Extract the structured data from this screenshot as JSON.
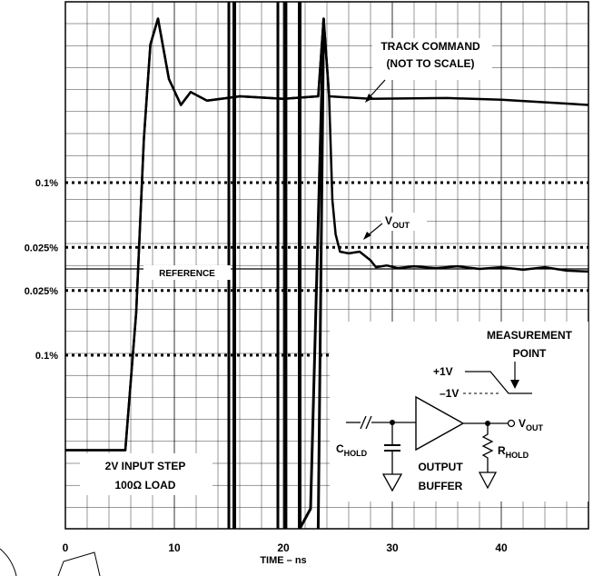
{
  "chart_data": {
    "type": "line",
    "title": "",
    "xlabel": "TIME – ns",
    "ylabel": "",
    "xlim": [
      0,
      48
    ],
    "x_ticks": [
      0,
      10,
      20,
      30,
      40
    ],
    "x_tick_labels": [
      "0",
      "10",
      "20",
      "30",
      "40"
    ],
    "grid": true,
    "levels": [
      {
        "label": "0.1%",
        "style": "dotted",
        "y_rel": 0.1
      },
      {
        "label": "0.025%",
        "style": "dotted",
        "y_rel": 0.025
      },
      {
        "label": "",
        "style": "solid",
        "y_rel": 0
      },
      {
        "label": "0.025%",
        "style": "dotted",
        "y_rel": -0.025
      },
      {
        "label": "0.1%",
        "style": "dotted",
        "y_rel": -0.1
      }
    ],
    "series": [
      {
        "name": "TRACK COMMAND",
        "points": [
          [
            0,
            -0.21
          ],
          [
            5.5,
            -0.21
          ],
          [
            6.5,
            -0.05
          ],
          [
            7.2,
            0.15
          ],
          [
            7.8,
            0.26
          ],
          [
            8.5,
            0.29
          ],
          [
            9.5,
            0.22
          ],
          [
            10.6,
            0.19
          ],
          [
            11.5,
            0.205
          ],
          [
            13,
            0.195
          ],
          [
            16,
            0.2
          ],
          [
            20,
            0.197
          ],
          [
            23.2,
            0.2
          ],
          [
            23.7,
            0.29
          ],
          [
            24.2,
            0.2
          ],
          [
            28,
            0.197
          ],
          [
            35,
            0.198
          ],
          [
            40,
            0.196
          ],
          [
            48,
            0.19
          ]
        ]
      },
      {
        "name": "VOUT",
        "points": [
          [
            0,
            -0.21
          ],
          [
            5.5,
            -0.21
          ],
          [
            6.5,
            -0.05
          ],
          [
            7.2,
            0.15
          ],
          [
            7.8,
            0.26
          ],
          [
            8.5,
            0.29
          ],
          [
            9.5,
            0.22
          ],
          [
            10.6,
            0.19
          ],
          [
            11.5,
            0.205
          ],
          [
            13,
            0.195
          ],
          [
            16,
            0.2
          ],
          [
            20,
            0.197
          ],
          [
            23.2,
            0.2
          ],
          [
            23.7,
            0.29
          ],
          [
            24.2,
            0.2
          ],
          [
            24.5,
            0.08
          ],
          [
            24.8,
            0.04
          ],
          [
            25.2,
            0.02
          ],
          [
            26,
            0.018
          ],
          [
            27,
            0.02
          ],
          [
            28,
            0.01
          ],
          [
            28.5,
            0.002
          ],
          [
            29.5,
            0.004
          ],
          [
            30.5,
            0.001
          ],
          [
            32,
            0.003
          ],
          [
            34,
            0.001
          ],
          [
            36,
            0.003
          ],
          [
            38,
            0.0
          ],
          [
            40,
            0.002
          ],
          [
            42,
            -0.001
          ],
          [
            44,
            0.002
          ],
          [
            46,
            -0.002
          ],
          [
            48,
            -0.003
          ]
        ]
      }
    ],
    "annotations": {
      "track_command_line1": "TRACK COMMAND",
      "track_command_line2": "(NOT TO SCALE)",
      "vout_label": "V",
      "vout_sub": "OUT",
      "reference": "REFERENCE",
      "input_step_line1": "2V INPUT STEP",
      "input_step_line2": "100Ω LOAD"
    },
    "inset": {
      "measurement_line1": "MEASUREMENT",
      "measurement_line2": "POINT",
      "plus": "+1V",
      "minus": "–1V",
      "vout": "V",
      "vout_sub": "OUT",
      "chold": "C",
      "chold_sub": "HOLD",
      "rhold": "R",
      "rhold_sub": "HOLD",
      "buffer_line1": "OUTPUT",
      "buffer_line2": "BUFFER"
    }
  }
}
